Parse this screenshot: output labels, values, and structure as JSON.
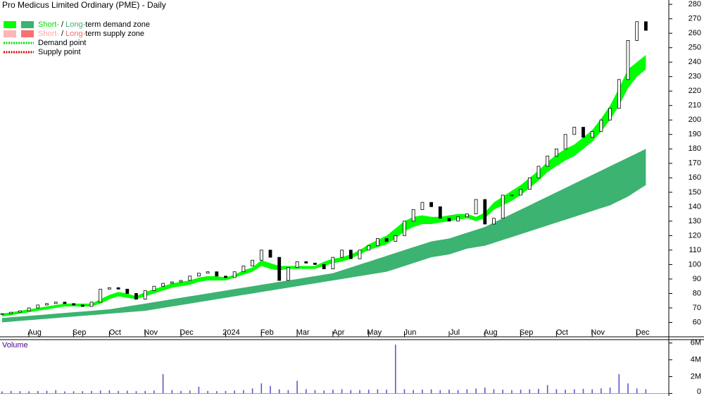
{
  "chart_data": [
    {
      "type": "candlestick",
      "title": "Pro Medicus Limited Ordinary (PME) - Daily",
      "legend": [
        {
          "swatches": [
            "#00ff00",
            "#3cb371"
          ],
          "parts": [
            {
              "text": "Short-",
              "color": "#00dd00"
            },
            {
              "text": " / "
            },
            {
              "text": "Long-",
              "color": "#3cb371"
            },
            {
              "text": "term demand zone"
            }
          ]
        },
        {
          "swatches": [
            "#ffb6b6",
            "#fa7070"
          ],
          "parts": [
            {
              "text": "Short-",
              "color": "#ffa8a8"
            },
            {
              "text": " / "
            },
            {
              "text": "Long-",
              "color": "#f07070"
            },
            {
              "text": "term supply zone"
            }
          ]
        },
        {
          "line": "#00dd00",
          "parts": [
            {
              "text": "Demand point"
            }
          ]
        },
        {
          "line": "#dd0000",
          "parts": [
            {
              "text": "Supply point"
            }
          ]
        }
      ],
      "categories": [
        null,
        null,
        null,
        "Aug",
        null,
        null,
        null,
        null,
        "Sep",
        null,
        null,
        null,
        "Oct",
        null,
        null,
        null,
        "Nov",
        null,
        null,
        null,
        "Dec",
        null,
        null,
        null,
        null,
        "2024",
        null,
        null,
        null,
        "Feb",
        null,
        null,
        null,
        "Mar",
        null,
        null,
        null,
        "Apr",
        null,
        null,
        null,
        "May",
        null,
        null,
        null,
        "Jun",
        null,
        null,
        null,
        null,
        "Jul",
        null,
        null,
        null,
        "Aug",
        null,
        null,
        null,
        "Sep",
        null,
        null,
        null,
        "Oct",
        null,
        null,
        null,
        "Nov",
        null,
        null,
        null,
        null,
        "Dec",
        null
      ],
      "close": [
        66,
        67,
        68,
        70,
        72,
        73,
        74,
        73,
        72,
        71,
        74,
        83,
        84,
        83,
        80,
        76,
        82,
        85,
        87,
        88,
        89,
        92,
        94,
        95,
        92,
        91,
        95,
        99,
        103,
        110,
        105,
        89,
        98,
        102,
        101,
        100,
        97,
        105,
        110,
        104,
        110,
        113,
        118,
        116,
        120,
        130,
        138,
        143,
        140,
        132,
        130,
        133,
        135,
        145,
        128,
        132,
        148,
        148,
        152,
        160,
        168,
        175,
        180,
        190,
        195,
        188,
        192,
        200,
        208,
        228,
        255,
        268,
        262
      ],
      "bands": [
        {
          "color": "#3cb371",
          "lower": [
            60,
            60.5,
            61,
            61.5,
            62,
            62.5,
            63,
            63.5,
            64,
            64.5,
            65,
            65.5,
            66,
            66.5,
            67,
            67.5,
            68,
            69,
            70,
            71,
            72,
            73,
            74,
            75,
            76,
            77,
            78,
            79,
            80,
            81,
            82,
            83,
            84,
            85,
            86,
            87,
            88,
            89,
            90,
            91,
            92,
            93,
            94,
            95,
            97,
            99,
            101,
            103,
            105,
            106,
            107,
            109,
            111,
            112,
            113,
            115,
            117,
            119,
            121,
            123,
            125,
            127,
            129,
            131,
            133,
            135,
            137,
            139,
            141,
            144,
            147,
            151,
            155
          ],
          "upper": [
            63,
            63.5,
            64,
            64.5,
            65,
            65.5,
            66,
            66.5,
            67,
            67.5,
            68,
            68.5,
            69,
            70,
            71,
            72,
            73,
            74,
            75,
            76,
            77,
            78,
            79,
            80,
            81,
            82,
            83,
            84,
            85,
            86,
            87,
            88,
            89,
            90,
            91,
            92,
            93,
            94,
            96,
            98,
            100,
            102,
            104,
            106,
            108,
            110,
            112,
            114,
            116,
            117,
            118,
            120,
            122,
            124,
            126,
            129,
            132,
            135,
            138,
            141,
            144,
            147,
            150,
            153,
            156,
            159,
            162,
            165,
            168,
            171,
            174,
            177,
            180
          ]
        },
        {
          "color": "#00ff00",
          "lower": [
            64,
            65,
            66,
            67,
            68,
            69,
            70,
            71,
            71,
            71,
            71,
            73,
            76,
            78,
            77,
            76,
            78,
            80,
            82,
            84,
            85,
            86,
            88,
            89,
            89,
            89,
            91,
            93,
            95,
            99,
            97,
            96,
            97,
            97,
            97,
            97,
            99,
            101,
            102,
            104,
            107,
            110,
            112,
            114,
            118,
            123,
            126,
            128,
            128,
            129,
            130,
            131,
            132,
            130,
            132,
            138,
            141,
            144,
            148,
            153,
            158,
            164,
            168,
            172,
            175,
            180,
            185,
            192,
            200,
            210,
            222,
            230,
            235
          ],
          "upper": [
            66,
            67,
            68,
            69,
            70,
            71,
            72,
            73,
            73,
            73,
            73,
            76,
            79,
            81,
            80,
            78,
            81,
            83,
            85,
            87,
            88,
            89,
            91,
            92,
            92,
            91,
            93,
            96,
            98,
            103,
            101,
            99,
            99,
            99,
            99,
            99,
            102,
            104,
            105,
            107,
            110,
            114,
            117,
            120,
            125,
            130,
            133,
            134,
            133,
            133,
            134,
            135,
            135,
            133,
            136,
            143,
            147,
            151,
            155,
            160,
            165,
            171,
            176,
            180,
            183,
            188,
            193,
            201,
            210,
            222,
            235,
            240,
            245
          ]
        }
      ],
      "ylim": [
        50,
        283
      ],
      "yticks": [
        60,
        70,
        80,
        90,
        100,
        110,
        120,
        130,
        140,
        150,
        160,
        170,
        180,
        190,
        200,
        210,
        220,
        230,
        240,
        250,
        260,
        270,
        280
      ]
    },
    {
      "type": "bar",
      "title": "Volume",
      "color": "#5a5ad0",
      "values": [
        250000,
        300000,
        280000,
        260000,
        300000,
        320000,
        400000,
        250000,
        260000,
        280000,
        300000,
        350000,
        380000,
        300000,
        330000,
        280000,
        300000,
        350000,
        2300000,
        400000,
        300000,
        350000,
        800000,
        300000,
        280000,
        300000,
        350000,
        400000,
        600000,
        1200000,
        900000,
        500000,
        400000,
        1500000,
        500000,
        400000,
        350000,
        450000,
        500000,
        400000,
        400000,
        450000,
        500000,
        450000,
        5800000,
        500000,
        400000,
        450000,
        500000,
        400000,
        450000,
        400000,
        500000,
        600000,
        700000,
        500000,
        450000,
        400000,
        450000,
        500000,
        550000,
        1000000,
        500000,
        450000,
        500000,
        550000,
        500000,
        600000,
        700000,
        2300000,
        1200000,
        600000,
        500000
      ],
      "ylim": [
        -300000,
        6400000
      ],
      "yticks": [
        0,
        {
          "value": 2000000,
          "label": "2M"
        },
        {
          "value": 4000000,
          "label": "4M"
        },
        {
          "value": 6000000,
          "label": "6M"
        }
      ]
    }
  ]
}
